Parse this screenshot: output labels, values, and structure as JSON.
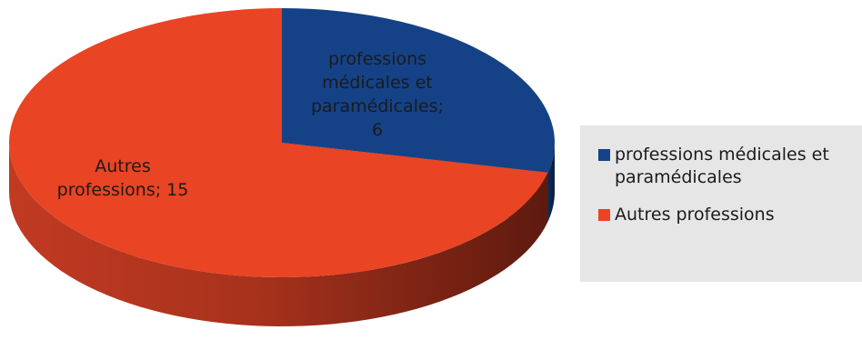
{
  "chart_data": {
    "type": "pie",
    "style": "3d",
    "title": "",
    "slices": [
      {
        "name": "professions médicales et paramédicales",
        "value": 6,
        "color": "#154287",
        "data_label": [
          "professions",
          "médicales et",
          "paramédicales;",
          "6"
        ]
      },
      {
        "name": "Autres professions",
        "value": 15,
        "color": "#e94424",
        "data_label": [
          "Autres",
          "professions; 15"
        ]
      }
    ],
    "legend": {
      "position": "right",
      "entries": [
        {
          "label_lines": [
            "professions médicales et",
            "paramédicales"
          ],
          "color": "#154287"
        },
        {
          "label_lines": [
            "Autres professions"
          ],
          "color": "#e94424"
        }
      ]
    }
  }
}
